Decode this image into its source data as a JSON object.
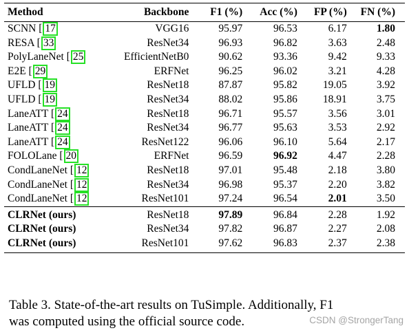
{
  "table": {
    "headers": {
      "method": "Method",
      "backbone": "Backbone",
      "f1": "F1 (%)",
      "acc": "Acc (%)",
      "fp": "FP (%)",
      "fn": "FN (%)"
    },
    "rows": [
      {
        "method": "SCNN [",
        "cite": "17",
        "after": "",
        "backbone": "VGG16",
        "f1": "95.97",
        "acc": "96.53",
        "fp": "6.17",
        "fn": "1.80",
        "bold": [
          "fn"
        ]
      },
      {
        "method": "RESA [",
        "cite": "33",
        "after": "",
        "backbone": "ResNet34",
        "f1": "96.93",
        "acc": "96.82",
        "fp": "3.63",
        "fn": "2.48",
        "bold": []
      },
      {
        "method": "PolyLaneNet [",
        "cite": "25",
        "after": "",
        "backbone": "EfficientNetB0",
        "f1": "90.62",
        "acc": "93.36",
        "fp": "9.42",
        "fn": "9.33",
        "bold": []
      },
      {
        "method": "E2E [",
        "cite": "29",
        "after": "",
        "backbone": "ERFNet",
        "f1": "96.25",
        "acc": "96.02",
        "fp": "3.21",
        "fn": "4.28",
        "bold": []
      },
      {
        "method": "UFLD [",
        "cite": "19",
        "after": "",
        "backbone": "ResNet18",
        "f1": "87.87",
        "acc": "95.82",
        "fp": "19.05",
        "fn": "3.92",
        "bold": []
      },
      {
        "method": "UFLD [",
        "cite": "19",
        "after": "",
        "backbone": "ResNet34",
        "f1": "88.02",
        "acc": "95.86",
        "fp": "18.91",
        "fn": "3.75",
        "bold": []
      },
      {
        "method": "LaneATT [",
        "cite": "24",
        "after": "",
        "backbone": "ResNet18",
        "f1": "96.71",
        "acc": "95.57",
        "fp": "3.56",
        "fn": "3.01",
        "bold": []
      },
      {
        "method": "LaneATT [",
        "cite": "24",
        "after": "",
        "backbone": "ResNet34",
        "f1": "96.77",
        "acc": "95.63",
        "fp": "3.53",
        "fn": "2.92",
        "bold": []
      },
      {
        "method": "LaneATT [",
        "cite": "24",
        "after": "",
        "backbone": "ResNet122",
        "f1": "96.06",
        "acc": "96.10",
        "fp": "5.64",
        "fn": "2.17",
        "bold": []
      },
      {
        "method": "FOLOLane [",
        "cite": "20",
        "after": "",
        "backbone": "ERFNet",
        "f1": "96.59",
        "acc": "96.92",
        "fp": "4.47",
        "fn": "2.28",
        "bold": [
          "acc"
        ]
      },
      {
        "method": "CondLaneNet [",
        "cite": "12",
        "after": "",
        "backbone": "ResNet18",
        "f1": "97.01",
        "acc": "95.48",
        "fp": "2.18",
        "fn": "3.80",
        "bold": []
      },
      {
        "method": "CondLaneNet [",
        "cite": "12",
        "after": "",
        "backbone": "ResNet34",
        "f1": "96.98",
        "acc": "95.37",
        "fp": "2.20",
        "fn": "3.82",
        "bold": []
      },
      {
        "method": "CondLaneNet [",
        "cite": "12",
        "after": "",
        "backbone": "ResNet101",
        "f1": "97.24",
        "acc": "96.54",
        "fp": "2.01",
        "fn": "3.50",
        "bold": [
          "fp"
        ]
      }
    ],
    "ours": [
      {
        "method": "CLRNet (ours)",
        "backbone": "ResNet18",
        "f1": "97.89",
        "acc": "96.84",
        "fp": "2.28",
        "fn": "1.92",
        "bold": [
          "f1"
        ]
      },
      {
        "method": "CLRNet (ours)",
        "backbone": "ResNet34",
        "f1": "97.82",
        "acc": "96.87",
        "fp": "2.27",
        "fn": "2.08",
        "bold": []
      },
      {
        "method": "CLRNet (ours)",
        "backbone": "ResNet101",
        "f1": "97.62",
        "acc": "96.83",
        "fp": "2.37",
        "fn": "2.38",
        "bold": []
      }
    ]
  },
  "caption": {
    "line1": "Table 3.  State-of-the-art results on TuSimple.  Additionally, F1",
    "line2": "was computed using the official source code."
  },
  "watermark": "CSDN @StrongerTang"
}
